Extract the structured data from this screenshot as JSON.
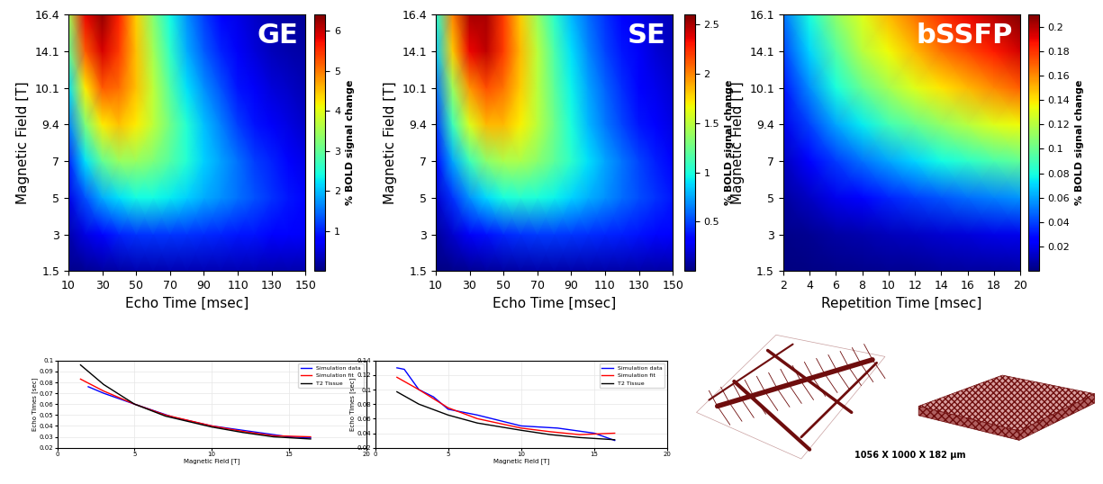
{
  "chart_data": [
    {
      "type": "heatmap",
      "label": "GE",
      "x_label": "Echo Time [msec]",
      "y_label": "Magnetic Field [T]",
      "x": [
        10,
        20,
        30,
        40,
        50,
        60,
        70,
        80,
        90,
        100,
        110,
        120,
        130,
        140,
        150
      ],
      "y_categories": [
        "1.5",
        "3",
        "5",
        "7",
        "9.4",
        "10.1",
        "14.1",
        "16.4"
      ],
      "cells": [
        [
          0.05,
          0.12,
          0.18,
          0.22,
          0.25,
          0.27,
          0.28,
          0.29,
          0.29,
          0.29,
          0.28,
          0.28,
          0.27,
          0.26,
          0.25
        ],
        [
          0.25,
          0.55,
          0.8,
          1.0,
          1.1,
          1.15,
          1.15,
          1.1,
          1.05,
          1.0,
          0.95,
          0.9,
          0.8,
          0.75,
          0.7
        ],
        [
          0.6,
          1.3,
          1.9,
          2.2,
          2.4,
          2.4,
          2.3,
          2.1,
          1.9,
          1.7,
          1.5,
          1.3,
          1.1,
          0.95,
          0.8
        ],
        [
          1.0,
          2.2,
          3.0,
          3.4,
          3.4,
          3.2,
          2.9,
          2.5,
          2.1,
          1.8,
          1.5,
          1.2,
          1.0,
          0.8,
          0.6
        ],
        [
          1.6,
          3.2,
          4.2,
          4.5,
          4.2,
          3.7,
          3.1,
          2.5,
          2.0,
          1.6,
          1.2,
          0.9,
          0.7,
          0.55,
          0.4
        ],
        [
          2.2,
          4.2,
          5.2,
          5.1,
          4.5,
          3.7,
          2.9,
          2.2,
          1.7,
          1.3,
          0.9,
          0.7,
          0.5,
          0.4,
          0.3
        ],
        [
          3.0,
          5.2,
          5.9,
          5.4,
          4.5,
          3.5,
          2.6,
          1.9,
          1.4,
          1.0,
          0.7,
          0.5,
          0.35,
          0.25,
          0.2
        ],
        [
          3.5,
          5.8,
          6.3,
          5.6,
          4.4,
          3.3,
          2.4,
          1.7,
          1.2,
          0.8,
          0.6,
          0.4,
          0.3,
          0.2,
          0.15
        ]
      ],
      "xlim": [
        10,
        150
      ],
      "xticks": [
        10,
        30,
        50,
        70,
        90,
        110,
        130,
        150
      ],
      "colorbar_label": "% BOLD signal change",
      "colorbar_range": [
        0,
        6.4
      ],
      "colorbar_ticks": [
        1,
        2,
        3,
        4,
        5,
        6
      ]
    },
    {
      "type": "heatmap",
      "label": "SE",
      "x_label": "Echo Time [msec]",
      "y_label": "Magnetic Field [T]",
      "x": [
        10,
        20,
        30,
        40,
        50,
        60,
        70,
        80,
        90,
        100,
        110,
        120,
        130,
        140,
        150
      ],
      "y_categories": [
        "1.5",
        "3",
        "5",
        "7",
        "9.4",
        "10.1",
        "14.1",
        "16.4"
      ],
      "cells": [
        [
          0.01,
          0.03,
          0.05,
          0.07,
          0.08,
          0.09,
          0.1,
          0.1,
          0.1,
          0.1,
          0.1,
          0.1,
          0.1,
          0.09,
          0.09
        ],
        [
          0.07,
          0.18,
          0.28,
          0.36,
          0.42,
          0.45,
          0.47,
          0.47,
          0.46,
          0.44,
          0.42,
          0.4,
          0.37,
          0.34,
          0.31
        ],
        [
          0.18,
          0.45,
          0.7,
          0.88,
          0.98,
          1.02,
          1.0,
          0.95,
          0.87,
          0.78,
          0.7,
          0.6,
          0.52,
          0.45,
          0.38
        ],
        [
          0.3,
          0.75,
          1.1,
          1.35,
          1.45,
          1.45,
          1.35,
          1.2,
          1.05,
          0.9,
          0.75,
          0.62,
          0.5,
          0.4,
          0.32
        ],
        [
          0.45,
          1.1,
          1.6,
          1.85,
          1.85,
          1.7,
          1.5,
          1.25,
          1.0,
          0.8,
          0.63,
          0.5,
          0.38,
          0.3,
          0.23
        ],
        [
          0.6,
          1.4,
          1.95,
          2.15,
          2.05,
          1.8,
          1.5,
          1.2,
          0.95,
          0.75,
          0.58,
          0.44,
          0.33,
          0.25,
          0.19
        ],
        [
          0.85,
          1.8,
          2.35,
          2.45,
          2.2,
          1.85,
          1.5,
          1.15,
          0.9,
          0.68,
          0.5,
          0.38,
          0.28,
          0.2,
          0.15
        ],
        [
          1.0,
          2.0,
          2.5,
          2.5,
          2.2,
          1.8,
          1.4,
          1.05,
          0.8,
          0.6,
          0.45,
          0.33,
          0.25,
          0.18,
          0.13
        ]
      ],
      "xlim": [
        10,
        150
      ],
      "xticks": [
        10,
        30,
        50,
        70,
        90,
        110,
        130,
        150
      ],
      "colorbar_label": "% BOLD signal change",
      "colorbar_range": [
        0,
        2.6
      ],
      "colorbar_ticks": [
        0.5,
        1,
        1.5,
        2,
        2.5
      ]
    },
    {
      "type": "heatmap",
      "label": "bSSFP",
      "x_label": "Repetition Time [msec]",
      "y_label": "Magnetic Field [T]",
      "x": [
        2,
        4,
        6,
        8,
        10,
        12,
        14,
        16,
        18,
        20
      ],
      "y_categories": [
        "1.5",
        "3",
        "5",
        "7",
        "9.4",
        "10.1",
        "14.1",
        "16.1"
      ],
      "cells": [
        [
          0.0,
          0.001,
          0.002,
          0.003,
          0.004,
          0.004,
          0.005,
          0.006,
          0.006,
          0.007
        ],
        [
          0.002,
          0.004,
          0.007,
          0.009,
          0.011,
          0.013,
          0.015,
          0.017,
          0.019,
          0.02
        ],
        [
          0.006,
          0.013,
          0.02,
          0.027,
          0.033,
          0.039,
          0.044,
          0.049,
          0.053,
          0.057
        ],
        [
          0.012,
          0.025,
          0.038,
          0.05,
          0.06,
          0.07,
          0.078,
          0.085,
          0.092,
          0.098
        ],
        [
          0.02,
          0.04,
          0.06,
          0.075,
          0.09,
          0.1,
          0.11,
          0.12,
          0.13,
          0.135
        ],
        [
          0.03,
          0.055,
          0.08,
          0.1,
          0.115,
          0.13,
          0.14,
          0.15,
          0.16,
          0.17
        ],
        [
          0.04,
          0.07,
          0.095,
          0.12,
          0.135,
          0.15,
          0.165,
          0.175,
          0.185,
          0.195
        ],
        [
          0.05,
          0.08,
          0.11,
          0.13,
          0.15,
          0.165,
          0.18,
          0.19,
          0.2,
          0.21
        ]
      ],
      "xlim": [
        2,
        20
      ],
      "xticks": [
        2,
        4,
        6,
        8,
        10,
        12,
        14,
        16,
        18,
        20
      ],
      "colorbar_label": "% BOLD signal change",
      "colorbar_range": [
        0,
        0.21
      ],
      "colorbar_ticks": [
        0.02,
        0.04,
        0.06,
        0.08,
        0.1,
        0.12,
        0.14,
        0.16,
        0.18,
        0.2
      ]
    },
    {
      "type": "line",
      "x_label": "Magnetic Field [T]",
      "y_label": "Echo Times [sec]",
      "xlim": [
        0,
        20
      ],
      "xticks": [
        0,
        5,
        10,
        15,
        20
      ],
      "ylim": [
        0.02,
        0.1
      ],
      "yticks": [
        0.02,
        0.03,
        0.04,
        0.05,
        0.06,
        0.07,
        0.08,
        0.09,
        0.1
      ],
      "grid": true,
      "legend": "upper right",
      "series": [
        {
          "name": "Simulation data",
          "color": "#0000ff",
          "x": [
            2,
            3,
            5,
            7.5,
            10,
            12.5,
            15,
            16.4
          ],
          "values": [
            0.076,
            0.07,
            0.06,
            0.048,
            0.04,
            0.035,
            0.03,
            0.029
          ]
        },
        {
          "name": "Simulation fit",
          "color": "#ff0000",
          "x": [
            1.5,
            3,
            5,
            7,
            10,
            12,
            14,
            16.4
          ],
          "values": [
            0.083,
            0.072,
            0.06,
            0.05,
            0.04,
            0.035,
            0.031,
            0.03
          ]
        },
        {
          "name": "T2 Tissue",
          "color": "#000000",
          "x": [
            1.5,
            3,
            5,
            7,
            10,
            12,
            14,
            16.4
          ],
          "values": [
            0.096,
            0.078,
            0.06,
            0.049,
            0.039,
            0.034,
            0.03,
            0.028
          ]
        }
      ]
    },
    {
      "type": "line",
      "x_label": "Magnetic Field [T]",
      "y_label": "Echo Times [sec]",
      "xlim": [
        0,
        20
      ],
      "xticks": [
        0,
        5,
        10,
        15,
        20
      ],
      "ylim": [
        0.02,
        0.14
      ],
      "yticks": [
        0.02,
        0.04,
        0.06,
        0.08,
        0.1,
        0.12,
        0.14
      ],
      "grid": true,
      "legend": "upper right",
      "series": [
        {
          "name": "Simulation data",
          "color": "#0000ff",
          "x": [
            1.5,
            2,
            3,
            4,
            5,
            7,
            10,
            12.5,
            15,
            16.4
          ],
          "values": [
            0.13,
            0.128,
            0.1,
            0.09,
            0.073,
            0.065,
            0.05,
            0.047,
            0.04,
            0.03
          ]
        },
        {
          "name": "Simulation fit",
          "color": "#ff0000",
          "x": [
            1.5,
            3,
            5,
            7,
            10,
            12,
            14,
            16.4
          ],
          "values": [
            0.117,
            0.1,
            0.075,
            0.06,
            0.047,
            0.042,
            0.038,
            0.04
          ]
        },
        {
          "name": "T2 Tissue",
          "color": "#000000",
          "x": [
            1.5,
            3,
            5,
            7,
            10,
            12,
            14,
            16.4
          ],
          "values": [
            0.097,
            0.08,
            0.065,
            0.054,
            0.044,
            0.038,
            0.034,
            0.031
          ]
        }
      ]
    }
  ],
  "image_caption": "1056 X 1000 X 182 µm"
}
